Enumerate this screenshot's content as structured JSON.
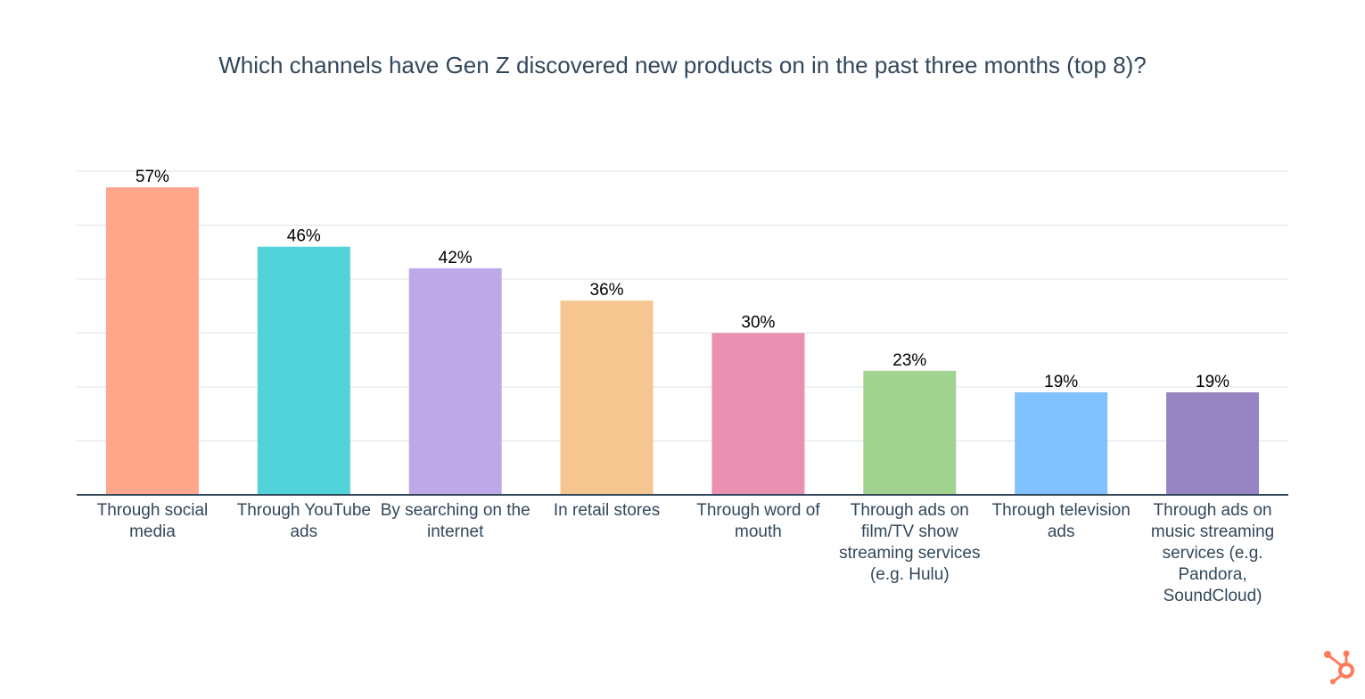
{
  "chart_data": {
    "type": "bar",
    "title": "Which channels have Gen Z discovered new products on in the past three months (top 8)?",
    "categories": [
      "Through social media",
      "Through YouTube ads",
      "By searching on the internet",
      "In retail stores",
      "Through word of mouth",
      "Through ads on film/TV show streaming services (e.g. Hulu)",
      "Through television ads",
      "Through ads on music streaming services (e.g. Pandora, SoundCloud)"
    ],
    "values": [
      57,
      46,
      42,
      36,
      30,
      23,
      19,
      19
    ],
    "data_labels": [
      "57%",
      "46%",
      "42%",
      "36%",
      "30%",
      "23%",
      "19%",
      "19%"
    ],
    "colors": [
      "#FFA68B",
      "#51D3D9",
      "#BEA9E8",
      "#F5C68F",
      "#EA90B1",
      "#A2D28F",
      "#81C1FD",
      "#9784C2"
    ],
    "xlabel": "",
    "ylabel": "",
    "ylim": [
      0,
      60
    ],
    "y_grid_step": 10,
    "grid": true,
    "y_tick_labels_shown": false
  },
  "brand": {
    "logo": "hubspot-sprocket",
    "color": "#FF7A59"
  }
}
